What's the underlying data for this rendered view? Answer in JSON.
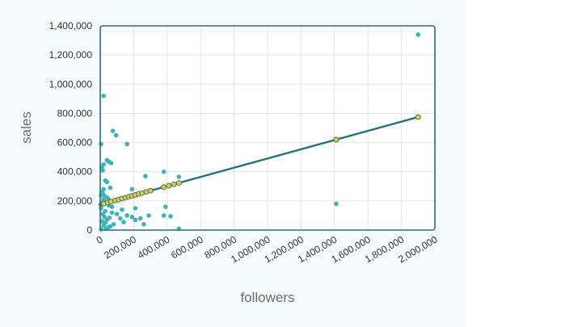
{
  "colors": {
    "panel_background": "#f3fbfd",
    "plot_background": "#ffffff",
    "plot_border": "#2a6f75",
    "grid": "#e4e4e4",
    "scatter_points": "#3fb3b8",
    "trend_line": "#26737a",
    "trend_markers": "#c9d26a"
  },
  "chart_data": {
    "type": "scatter",
    "title": "",
    "xlabel": "followers",
    "ylabel": "sales",
    "xlim": [
      0,
      2000000
    ],
    "ylim": [
      0,
      1400000
    ],
    "x_ticks": [
      0,
      200000,
      400000,
      600000,
      800000,
      1000000,
      1200000,
      1400000,
      1600000,
      1800000,
      2000000
    ],
    "x_tick_labels": [
      "0",
      "200,000",
      "400,000",
      "600,000",
      "800,000",
      "1,000,000",
      "1,200,000",
      "1,400,000",
      "1,600,000",
      "1,800,000",
      "2,000,000"
    ],
    "y_ticks": [
      0,
      200000,
      400000,
      600000,
      800000,
      1000000,
      1200000,
      1400000
    ],
    "y_tick_labels": [
      "0",
      "200,000",
      "400,000",
      "600,000",
      "800,000",
      "1,000,000",
      "1,200,000",
      "1,400,000"
    ],
    "grid": true,
    "legend": "none",
    "series": [
      {
        "kind": "scatter",
        "color": "#3fb3b8",
        "points": [
          [
            1900000,
            1340000
          ],
          [
            20000,
            920000
          ],
          [
            75000,
            680000
          ],
          [
            95000,
            650000
          ],
          [
            160000,
            590000
          ],
          [
            5000,
            590000
          ],
          [
            40000,
            480000
          ],
          [
            50000,
            470000
          ],
          [
            65000,
            460000
          ],
          [
            20000,
            450000
          ],
          [
            10000,
            430000
          ],
          [
            15000,
            410000
          ],
          [
            380000,
            400000
          ],
          [
            270000,
            370000
          ],
          [
            470000,
            365000
          ],
          [
            30000,
            340000
          ],
          [
            40000,
            330000
          ],
          [
            60000,
            290000
          ],
          [
            190000,
            280000
          ],
          [
            20000,
            280000
          ],
          [
            10000,
            260000
          ],
          [
            15000,
            250000
          ],
          [
            5000,
            240000
          ],
          [
            30000,
            230000
          ],
          [
            45000,
            220000
          ],
          [
            20000,
            210000
          ],
          [
            60000,
            200000
          ],
          [
            25000,
            190000
          ],
          [
            10000,
            185000
          ],
          [
            1410000,
            180000
          ],
          [
            50000,
            170000
          ],
          [
            70000,
            160000
          ],
          [
            390000,
            160000
          ],
          [
            5000,
            150000
          ],
          [
            210000,
            150000
          ],
          [
            130000,
            140000
          ],
          [
            30000,
            130000
          ],
          [
            70000,
            120000
          ],
          [
            100000,
            110000
          ],
          [
            15000,
            110000
          ],
          [
            160000,
            100000
          ],
          [
            290000,
            100000
          ],
          [
            380000,
            100000
          ],
          [
            420000,
            95000
          ],
          [
            190000,
            90000
          ],
          [
            25000,
            90000
          ],
          [
            55000,
            85000
          ],
          [
            120000,
            80000
          ],
          [
            240000,
            80000
          ],
          [
            40000,
            70000
          ],
          [
            210000,
            70000
          ],
          [
            10000,
            60000
          ],
          [
            140000,
            55000
          ],
          [
            30000,
            50000
          ],
          [
            80000,
            40000
          ],
          [
            260000,
            40000
          ],
          [
            20000,
            30000
          ],
          [
            50000,
            20000
          ],
          [
            470000,
            10000
          ],
          [
            5000,
            5000
          ],
          [
            35000,
            10000
          ],
          [
            60000,
            25000
          ]
        ]
      },
      {
        "kind": "trendline",
        "color": "#26737a",
        "marker_color": "#c9d26a",
        "line": [
          [
            0,
            175000
          ],
          [
            1900000,
            775000
          ]
        ],
        "markers": [
          [
            20000,
            181000
          ],
          [
            45000,
            189000
          ],
          [
            65000,
            195000
          ],
          [
            90000,
            203000
          ],
          [
            110000,
            209000
          ],
          [
            130000,
            216000
          ],
          [
            150000,
            222000
          ],
          [
            170000,
            229000
          ],
          [
            190000,
            235000
          ],
          [
            210000,
            241000
          ],
          [
            230000,
            248000
          ],
          [
            250000,
            254000
          ],
          [
            275000,
            262000
          ],
          [
            300000,
            270000
          ],
          [
            380000,
            295000
          ],
          [
            410000,
            304000
          ],
          [
            440000,
            314000
          ],
          [
            470000,
            323000
          ],
          [
            1410000,
            620000
          ],
          [
            1900000,
            775000
          ]
        ]
      }
    ]
  }
}
